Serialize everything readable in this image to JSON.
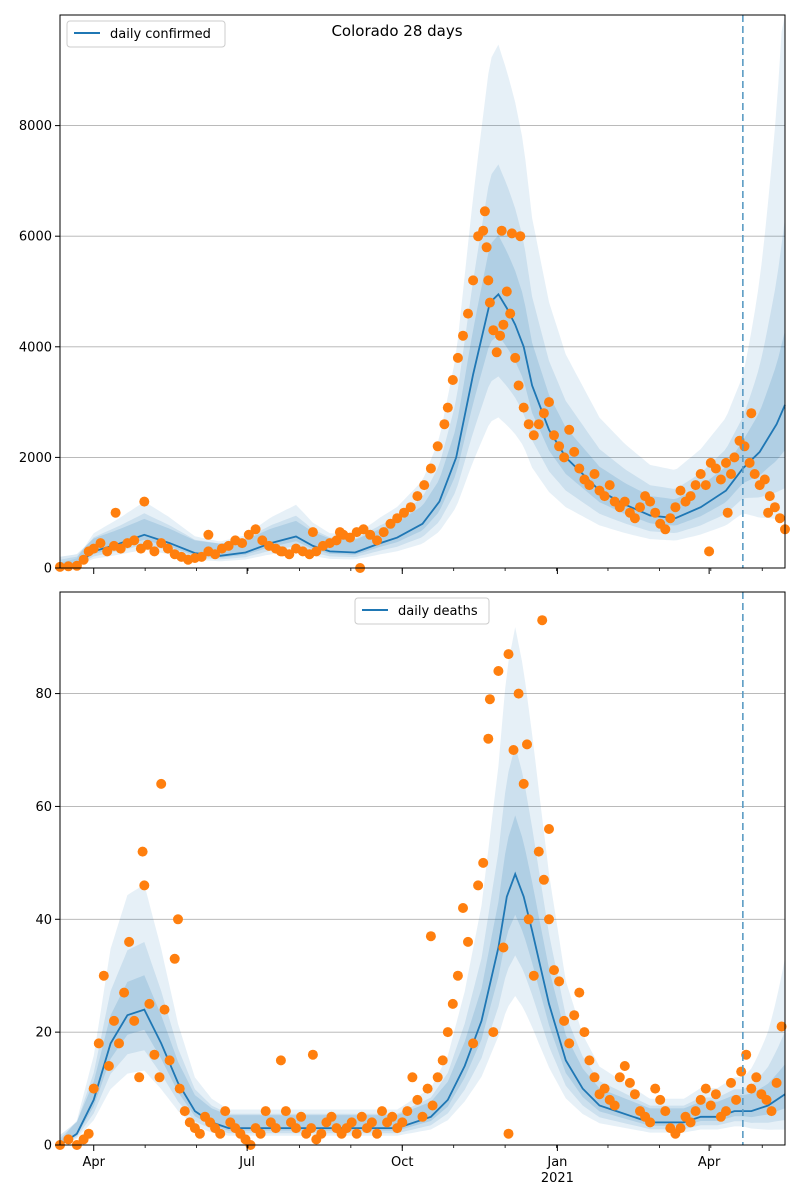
{
  "chart_data": [
    {
      "type": "line",
      "title": "Colorado 28 days",
      "xlabel": "",
      "ylabel": "",
      "ylim": [
        0,
        10000
      ],
      "x_range_days": [
        0,
        430
      ],
      "x_ticks": [
        {
          "day": 20,
          "label": "Apr"
        },
        {
          "day": 111,
          "label": "Jul"
        },
        {
          "day": 203,
          "label": "Oct"
        },
        {
          "day": 295,
          "label": "Jan"
        },
        {
          "day": 385,
          "label": "Apr"
        }
      ],
      "x_year_label": {
        "day": 295,
        "label": "2021"
      },
      "y_ticks": [
        0,
        2000,
        4000,
        6000,
        8000
      ],
      "grid": "horizontal",
      "forecast_line_day": 405,
      "legend": {
        "position": "top-left",
        "entries": [
          "daily confirmed"
        ]
      },
      "series": [
        {
          "name": "daily confirmed",
          "kind": "model-median",
          "x": [
            0,
            10,
            20,
            35,
            50,
            65,
            80,
            95,
            110,
            125,
            140,
            150,
            160,
            175,
            190,
            200,
            215,
            225,
            235,
            245,
            255,
            260,
            265,
            270,
            275,
            280,
            290,
            300,
            310,
            320,
            335,
            350,
            365,
            380,
            395,
            405,
            415,
            425,
            430
          ],
          "y": [
            20,
            60,
            300,
            440,
            600,
            450,
            270,
            220,
            280,
            450,
            570,
            400,
            300,
            280,
            450,
            550,
            800,
            1200,
            2000,
            3500,
            4800,
            4950,
            4700,
            4400,
            4000,
            3300,
            2500,
            2000,
            1700,
            1400,
            1150,
            950,
            900,
            1100,
            1400,
            1800,
            2100,
            2600,
            2950
          ]
        },
        {
          "kind": "observed",
          "x": [
            0,
            5,
            10,
            14,
            17,
            20,
            24,
            28,
            32,
            36,
            40,
            44,
            48,
            52,
            56,
            60,
            64,
            68,
            72,
            76,
            80,
            84,
            88,
            92,
            96,
            100,
            104,
            108,
            112,
            116,
            120,
            124,
            128,
            132,
            136,
            140,
            144,
            148,
            152,
            156,
            160,
            164,
            168,
            172,
            176,
            180,
            184,
            188,
            192,
            196,
            200,
            204,
            208,
            212,
            216,
            220,
            224,
            228,
            230,
            233,
            236,
            239,
            242,
            245,
            248,
            251,
            253,
            255,
            257,
            259,
            261,
            263,
            265,
            267,
            270,
            272,
            275,
            278,
            281,
            284,
            287,
            290,
            293,
            296,
            299,
            302,
            305,
            308,
            311,
            314,
            317,
            320,
            323,
            326,
            329,
            332,
            335,
            338,
            341,
            344,
            347,
            350,
            353,
            356,
            359,
            362,
            365,
            368,
            371,
            374,
            377,
            380,
            383,
            386,
            389,
            392,
            395,
            398,
            400,
            403,
            406,
            409,
            412,
            415,
            418,
            421,
            424,
            427,
            430,
            33,
            50,
            88,
            131,
            150,
            166,
            178,
            252,
            254,
            262,
            268,
            273,
            385,
            396,
            410,
            420
          ],
          "y": [
            20,
            30,
            40,
            150,
            300,
            350,
            450,
            300,
            400,
            350,
            450,
            500,
            350,
            420,
            300,
            450,
            350,
            250,
            200,
            150,
            180,
            200,
            300,
            250,
            350,
            400,
            500,
            450,
            600,
            700,
            500,
            400,
            350,
            300,
            250,
            350,
            300,
            250,
            300,
            400,
            450,
            500,
            600,
            550,
            650,
            700,
            600,
            500,
            650,
            800,
            900,
            1000,
            1100,
            1300,
            1500,
            1800,
            2200,
            2600,
            2900,
            3400,
            3800,
            4200,
            4600,
            5200,
            6000,
            6100,
            5800,
            4800,
            4300,
            3900,
            4200,
            4400,
            5000,
            4600,
            3800,
            3300,
            2900,
            2600,
            2400,
            2600,
            2800,
            3000,
            2400,
            2200,
            2000,
            2500,
            2100,
            1800,
            1600,
            1500,
            1700,
            1400,
            1300,
            1500,
            1200,
            1100,
            1200,
            1000,
            900,
            1100,
            1300,
            1200,
            1000,
            800,
            700,
            900,
            1100,
            1400,
            1200,
            1300,
            1500,
            1700,
            1500,
            1900,
            1800,
            1600,
            1900,
            1700,
            2000,
            2300,
            2200,
            1900,
            1700,
            1500,
            1600,
            1300,
            1100,
            900,
            700,
            1000,
            1200,
            600,
            300,
            650,
            650,
            0,
            6450,
            5200,
            6100,
            6050,
            6000,
            300,
            1000,
            2800,
            1000
          ]
        }
      ]
    },
    {
      "type": "line",
      "title": "",
      "xlabel": "",
      "ylabel": "",
      "ylim": [
        0,
        98
      ],
      "x_range_days": [
        0,
        430
      ],
      "x_ticks": [
        {
          "day": 20,
          "label": "Apr"
        },
        {
          "day": 111,
          "label": "Jul"
        },
        {
          "day": 203,
          "label": "Oct"
        },
        {
          "day": 295,
          "label": "Jan"
        },
        {
          "day": 385,
          "label": "Apr"
        }
      ],
      "x_year_label": {
        "day": 295,
        "label": "2021"
      },
      "y_ticks": [
        0,
        20,
        40,
        60,
        80
      ],
      "grid": "horizontal",
      "forecast_line_day": 405,
      "legend": {
        "position": "top-center",
        "entries": [
          "daily deaths"
        ]
      },
      "series": [
        {
          "name": "daily deaths",
          "kind": "model-median",
          "x": [
            0,
            10,
            20,
            30,
            40,
            50,
            60,
            70,
            80,
            90,
            100,
            120,
            140,
            160,
            180,
            200,
            220,
            230,
            240,
            250,
            260,
            265,
            270,
            275,
            280,
            290,
            300,
            310,
            320,
            330,
            340,
            350,
            360,
            370,
            380,
            390,
            400,
            410,
            420,
            430
          ],
          "y": [
            0,
            2,
            8,
            18,
            23,
            24,
            18,
            11,
            6,
            4,
            3,
            3,
            3,
            3,
            3,
            3,
            5,
            8,
            14,
            22,
            35,
            44,
            48,
            44,
            38,
            25,
            15,
            10,
            7,
            6,
            5,
            4,
            4,
            4,
            5,
            5,
            6,
            6,
            7,
            9
          ]
        },
        {
          "kind": "observed",
          "x": [
            0,
            5,
            10,
            14,
            17,
            20,
            23,
            26,
            29,
            32,
            35,
            38,
            41,
            44,
            47,
            50,
            53,
            56,
            59,
            62,
            65,
            68,
            71,
            74,
            77,
            80,
            83,
            86,
            89,
            92,
            95,
            98,
            101,
            104,
            107,
            110,
            113,
            116,
            119,
            122,
            125,
            128,
            131,
            134,
            137,
            140,
            143,
            146,
            149,
            152,
            155,
            158,
            161,
            164,
            167,
            170,
            173,
            176,
            179,
            182,
            185,
            188,
            191,
            194,
            197,
            200,
            203,
            206,
            209,
            212,
            215,
            218,
            221,
            224,
            227,
            230,
            233,
            236,
            239,
            242,
            245,
            248,
            251,
            254,
            257,
            260,
            263,
            266,
            269,
            272,
            275,
            278,
            281,
            284,
            287,
            290,
            293,
            296,
            299,
            302,
            305,
            308,
            311,
            314,
            317,
            320,
            323,
            326,
            329,
            332,
            335,
            338,
            341,
            344,
            347,
            350,
            353,
            356,
            359,
            362,
            365,
            368,
            371,
            374,
            377,
            380,
            383,
            386,
            389,
            392,
            395,
            398,
            401,
            404,
            407,
            410,
            413,
            416,
            419,
            422,
            425,
            428,
            49,
            60,
            70,
            150,
            220,
            255,
            266,
            277,
            286,
            290
          ],
          "y": [
            0,
            1,
            0,
            1,
            2,
            10,
            18,
            30,
            14,
            22,
            18,
            27,
            36,
            22,
            12,
            46,
            25,
            16,
            12,
            24,
            15,
            33,
            10,
            6,
            4,
            3,
            2,
            5,
            4,
            3,
            2,
            6,
            4,
            3,
            2,
            1,
            0,
            3,
            2,
            6,
            4,
            3,
            15,
            6,
            4,
            3,
            5,
            2,
            3,
            1,
            2,
            4,
            5,
            3,
            2,
            3,
            4,
            2,
            5,
            3,
            4,
            2,
            6,
            4,
            5,
            3,
            4,
            6,
            12,
            8,
            5,
            10,
            7,
            12,
            15,
            20,
            25,
            30,
            42,
            36,
            18,
            46,
            50,
            72,
            20,
            84,
            35,
            87,
            70,
            80,
            64,
            40,
            30,
            52,
            47,
            40,
            31,
            29,
            22,
            18,
            23,
            27,
            20,
            15,
            12,
            9,
            10,
            8,
            7,
            12,
            14,
            11,
            9,
            6,
            5,
            4,
            10,
            8,
            6,
            3,
            2,
            3,
            5,
            4,
            6,
            8,
            10,
            7,
            9,
            5,
            6,
            11,
            8,
            13,
            16,
            10,
            12,
            9,
            8,
            6,
            11,
            21,
            52,
            64,
            40,
            16,
            37,
            79,
            2,
            71,
            93,
            56
          ]
        }
      ]
    }
  ]
}
